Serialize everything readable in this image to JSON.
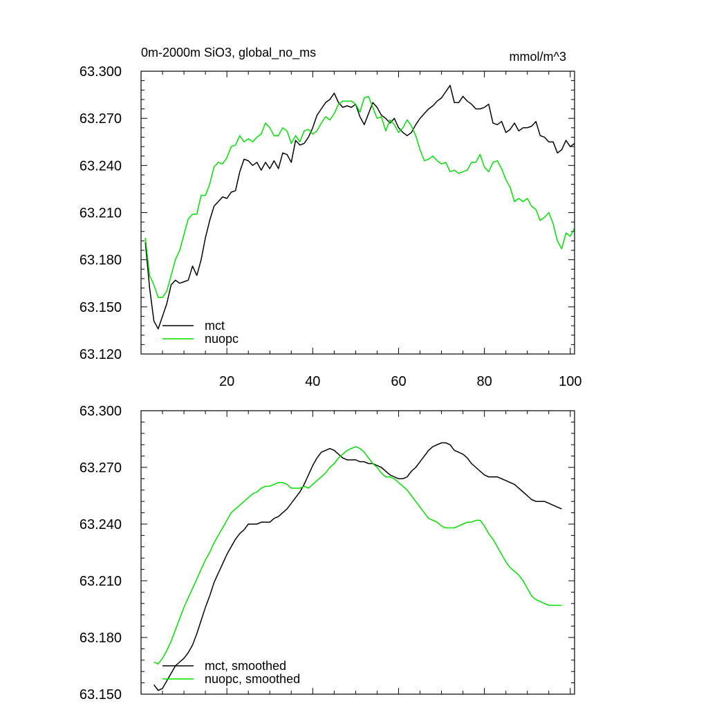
{
  "chart_data": [
    {
      "type": "line",
      "title": "0m-2000m SiO3, global_no_ms",
      "units": "mmol/m^3",
      "xlabel": "",
      "ylabel": "",
      "xlim": [
        0,
        101
      ],
      "ylim": [
        63.12,
        63.3
      ],
      "xticks": [
        20,
        40,
        60,
        80,
        100
      ],
      "xtick_labels": [
        "20",
        "40",
        "60",
        "80",
        "100"
      ],
      "yticks": [
        63.12,
        63.15,
        63.18,
        63.21,
        63.24,
        63.27,
        63.3
      ],
      "ytick_labels": [
        "63.120",
        "63.150",
        "63.180",
        "63.210",
        "63.240",
        "63.270",
        "63.300"
      ],
      "legend_position": "bottom-left",
      "series": [
        {
          "name": "mct",
          "color": "#000000",
          "x": [
            1,
            2,
            3,
            4,
            5,
            6,
            7,
            8,
            9,
            10,
            11,
            12,
            13,
            14,
            15,
            16,
            17,
            18,
            19,
            20,
            21,
            22,
            23,
            24,
            25,
            26,
            27,
            28,
            29,
            30,
            31,
            32,
            33,
            34,
            35,
            36,
            37,
            38,
            39,
            40,
            41,
            42,
            43,
            44,
            45,
            46,
            47,
            48,
            49,
            50,
            51,
            52,
            53,
            54,
            55,
            56,
            57,
            58,
            59,
            60,
            61,
            62,
            63,
            64,
            65,
            66,
            67,
            68,
            69,
            70,
            71,
            72,
            73,
            74,
            75,
            76,
            77,
            78,
            79,
            80,
            81,
            82,
            83,
            84,
            85,
            86,
            87,
            88,
            89,
            90,
            91,
            92,
            93,
            94,
            95,
            96,
            97,
            98,
            99,
            100,
            101
          ],
          "values": [
            63.191,
            63.162,
            63.141,
            63.136,
            63.144,
            63.152,
            63.164,
            63.167,
            63.165,
            63.166,
            63.167,
            63.176,
            63.17,
            63.18,
            63.194,
            63.205,
            63.214,
            63.217,
            63.22,
            63.219,
            63.223,
            63.224,
            63.236,
            63.244,
            63.243,
            63.24,
            63.242,
            63.237,
            63.242,
            63.238,
            63.243,
            63.238,
            63.248,
            63.247,
            63.242,
            63.256,
            63.253,
            63.254,
            63.258,
            63.264,
            63.272,
            63.276,
            63.28,
            63.282,
            63.286,
            63.28,
            63.277,
            63.278,
            63.277,
            63.279,
            63.271,
            63.266,
            63.273,
            63.28,
            63.277,
            63.272,
            63.27,
            63.267,
            63.27,
            63.264,
            63.261,
            63.259,
            63.261,
            63.266,
            63.27,
            63.273,
            63.276,
            63.278,
            63.281,
            63.283,
            63.287,
            63.291,
            63.28,
            63.28,
            63.284,
            63.281,
            63.279,
            63.276,
            63.276,
            63.277,
            63.279,
            63.267,
            63.266,
            63.268,
            63.261,
            63.263,
            63.267,
            63.262,
            63.264,
            63.264,
            63.265,
            63.268,
            63.259,
            63.258,
            63.255,
            63.255,
            63.248,
            63.25,
            63.256,
            63.252,
            63.254
          ]
        },
        {
          "name": "nuopc",
          "color": "#00e000",
          "x": [
            1,
            2,
            3,
            4,
            5,
            6,
            7,
            8,
            9,
            10,
            11,
            12,
            13,
            14,
            15,
            16,
            17,
            18,
            19,
            20,
            21,
            22,
            23,
            24,
            25,
            26,
            27,
            28,
            29,
            30,
            31,
            32,
            33,
            34,
            35,
            36,
            37,
            38,
            39,
            40,
            41,
            42,
            43,
            44,
            45,
            46,
            47,
            48,
            49,
            50,
            51,
            52,
            53,
            54,
            55,
            56,
            57,
            58,
            59,
            60,
            61,
            62,
            63,
            64,
            65,
            66,
            67,
            68,
            69,
            70,
            71,
            72,
            73,
            74,
            75,
            76,
            77,
            78,
            79,
            80,
            81,
            82,
            83,
            84,
            85,
            86,
            87,
            88,
            89,
            90,
            91,
            92,
            93,
            94,
            95,
            96,
            97,
            98,
            99,
            100,
            101
          ],
          "values": [
            63.194,
            63.17,
            63.164,
            63.156,
            63.156,
            63.16,
            63.17,
            63.18,
            63.186,
            63.196,
            63.206,
            63.209,
            63.209,
            63.221,
            63.221,
            63.228,
            63.239,
            63.242,
            63.241,
            63.245,
            63.252,
            63.253,
            63.259,
            63.255,
            63.257,
            63.255,
            63.258,
            63.26,
            63.267,
            63.264,
            63.259,
            63.259,
            63.264,
            63.262,
            63.254,
            63.259,
            63.255,
            63.262,
            63.263,
            63.26,
            63.262,
            63.267,
            63.271,
            63.269,
            63.273,
            63.279,
            63.281,
            63.281,
            63.281,
            63.279,
            63.274,
            63.283,
            63.284,
            63.277,
            63.27,
            63.271,
            63.262,
            63.269,
            63.266,
            63.261,
            63.264,
            63.269,
            63.265,
            63.259,
            63.25,
            63.243,
            63.244,
            63.246,
            63.243,
            63.241,
            63.242,
            63.236,
            63.237,
            63.235,
            63.236,
            63.237,
            63.242,
            63.242,
            63.247,
            63.239,
            63.236,
            63.242,
            63.243,
            63.238,
            63.231,
            63.226,
            63.217,
            63.219,
            63.217,
            63.219,
            63.214,
            63.212,
            63.205,
            63.207,
            63.21,
            63.203,
            63.192,
            63.187,
            63.197,
            63.195,
            63.2
          ]
        }
      ]
    },
    {
      "type": "line",
      "title": "",
      "xlabel": "",
      "ylabel": "",
      "xlim": [
        0,
        101
      ],
      "ylim": [
        63.15,
        63.3
      ],
      "xticks": [
        20,
        40,
        60,
        80,
        100
      ],
      "xtick_labels": [],
      "yticks": [
        63.15,
        63.18,
        63.21,
        63.24,
        63.27,
        63.3
      ],
      "ytick_labels": [
        "63.150",
        "63.180",
        "63.210",
        "63.240",
        "63.270",
        "63.300"
      ],
      "legend_position": "bottom-left",
      "series": [
        {
          "name": "mct, smoothed",
          "color": "#000000",
          "x": [
            3,
            4,
            5,
            6,
            7,
            8,
            9,
            10,
            11,
            12,
            13,
            14,
            15,
            16,
            17,
            18,
            19,
            20,
            21,
            22,
            23,
            24,
            25,
            26,
            27,
            28,
            29,
            30,
            31,
            32,
            33,
            34,
            35,
            36,
            37,
            38,
            39,
            40,
            41,
            42,
            43,
            44,
            45,
            46,
            47,
            48,
            49,
            50,
            51,
            52,
            53,
            54,
            55,
            56,
            57,
            58,
            59,
            60,
            61,
            62,
            63,
            64,
            65,
            66,
            67,
            68,
            69,
            70,
            71,
            72,
            73,
            74,
            75,
            76,
            77,
            78,
            79,
            80,
            81,
            82,
            83,
            84,
            85,
            86,
            87,
            88,
            89,
            90,
            91,
            92,
            93,
            94,
            95,
            96,
            97,
            98
          ],
          "values": [
            63.155,
            63.152,
            63.153,
            63.157,
            63.161,
            63.165,
            63.167,
            63.169,
            63.172,
            63.176,
            63.182,
            63.189,
            63.196,
            63.202,
            63.209,
            63.214,
            63.219,
            63.224,
            63.228,
            63.232,
            63.235,
            63.237,
            63.24,
            63.24,
            63.24,
            63.241,
            63.241,
            63.241,
            63.243,
            63.244,
            63.246,
            63.248,
            63.251,
            63.254,
            63.257,
            63.261,
            63.266,
            63.271,
            63.275,
            63.278,
            63.279,
            63.28,
            63.279,
            63.277,
            63.275,
            63.274,
            63.274,
            63.274,
            63.273,
            63.273,
            63.272,
            63.272,
            63.271,
            63.27,
            63.268,
            63.266,
            63.265,
            63.264,
            63.264,
            63.265,
            63.268,
            63.27,
            63.273,
            63.276,
            63.279,
            63.281,
            63.282,
            63.283,
            63.283,
            63.282,
            63.279,
            63.278,
            63.277,
            63.275,
            63.272,
            63.27,
            63.268,
            63.266,
            63.265,
            63.265,
            63.265,
            63.264,
            63.263,
            63.262,
            63.261,
            63.259,
            63.257,
            63.255,
            63.253,
            63.252,
            63.252,
            63.252,
            63.251,
            63.25,
            63.249,
            63.248
          ]
        },
        {
          "name": "nuopc, smoothed",
          "color": "#00e000",
          "x": [
            3,
            4,
            5,
            6,
            7,
            8,
            9,
            10,
            11,
            12,
            13,
            14,
            15,
            16,
            17,
            18,
            19,
            20,
            21,
            22,
            23,
            24,
            25,
            26,
            27,
            28,
            29,
            30,
            31,
            32,
            33,
            34,
            35,
            36,
            37,
            38,
            39,
            40,
            41,
            42,
            43,
            44,
            45,
            46,
            47,
            48,
            49,
            50,
            51,
            52,
            53,
            54,
            55,
            56,
            57,
            58,
            59,
            60,
            61,
            62,
            63,
            64,
            65,
            66,
            67,
            68,
            69,
            70,
            71,
            72,
            73,
            74,
            75,
            76,
            77,
            78,
            79,
            80,
            81,
            82,
            83,
            84,
            85,
            86,
            87,
            88,
            89,
            90,
            91,
            92,
            93,
            94,
            95,
            96,
            97,
            98
          ],
          "values": [
            63.167,
            63.166,
            63.169,
            63.173,
            63.178,
            63.184,
            63.19,
            63.196,
            63.201,
            63.206,
            63.211,
            63.216,
            63.221,
            63.225,
            63.23,
            63.234,
            63.238,
            63.242,
            63.246,
            63.248,
            63.25,
            63.252,
            63.254,
            63.256,
            63.257,
            63.259,
            63.26,
            63.26,
            63.261,
            63.262,
            63.262,
            63.261,
            63.259,
            63.259,
            63.259,
            63.26,
            63.259,
            63.261,
            63.263,
            63.265,
            63.267,
            63.27,
            63.272,
            63.275,
            63.277,
            63.279,
            63.28,
            63.281,
            63.28,
            63.278,
            63.275,
            63.272,
            63.27,
            63.267,
            63.265,
            63.265,
            63.264,
            63.262,
            63.26,
            63.258,
            63.255,
            63.252,
            63.249,
            63.246,
            63.243,
            63.242,
            63.241,
            63.239,
            63.238,
            63.238,
            63.238,
            63.239,
            63.24,
            63.241,
            63.241,
            63.242,
            63.242,
            63.239,
            63.235,
            63.232,
            63.228,
            63.224,
            63.22,
            63.217,
            63.215,
            63.213,
            63.21,
            63.206,
            63.202,
            63.2,
            63.199,
            63.198,
            63.197,
            63.197,
            63.197,
            63.197
          ]
        }
      ]
    }
  ]
}
